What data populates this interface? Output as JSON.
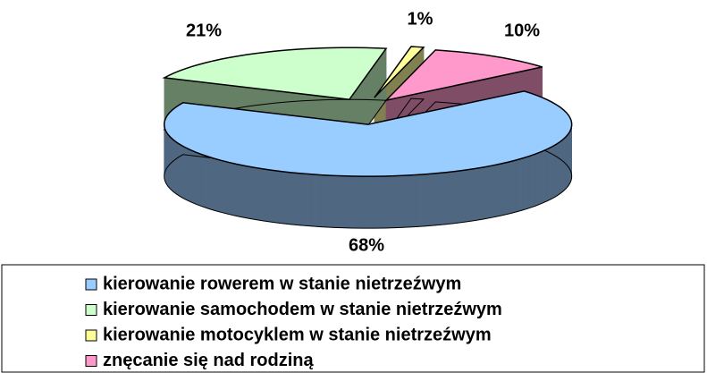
{
  "chart_data": {
    "type": "pie3d",
    "categories": [
      "kierowanie rowerem w stanie nietrzeźwym",
      "kierowanie samochodem w stanie nietrzeźwym",
      "kierowanie motocyklem w stanie nietrzeźwym",
      "znęcanie się nad rodziną"
    ],
    "values": [
      68,
      21,
      1,
      10
    ],
    "value_labels": [
      "68%",
      "21%",
      "1%",
      "10%"
    ],
    "colors": [
      "#99ccff",
      "#ccffcc",
      "#ffff99",
      "#ff99cc"
    ],
    "side_colors": [
      "#4f6780",
      "#668066",
      "#808050",
      "#804d66"
    ],
    "legend": "bottom"
  }
}
